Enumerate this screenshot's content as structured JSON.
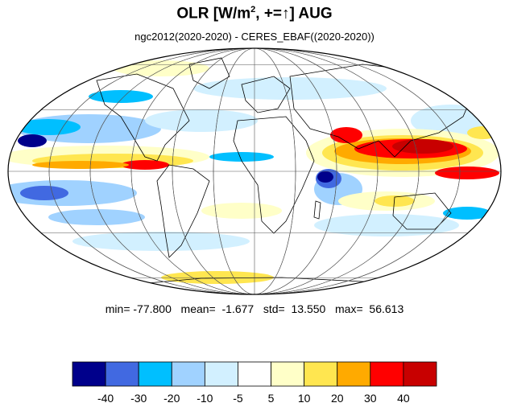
{
  "title": {
    "main_prefix": "OLR [W/m",
    "superscript": "2",
    "main_suffix": ", +=",
    "arrow": "↑",
    "main_tail": "] AUG"
  },
  "subtitle": "ngc2012(2020-2020) - CERES_EBAF((2020-2020))",
  "stats": {
    "text": "min= -77.800   mean=  -1.677   std=  13.550   max=  56.613"
  },
  "colorbar": {
    "colors": [
      "#00008b",
      "#4169e1",
      "#00bfff",
      "#a0d2ff",
      "#d2f0ff",
      "#ffffff",
      "#ffffc8",
      "#ffe650",
      "#ffaa00",
      "#ff0000",
      "#c80000"
    ],
    "labels": [
      "-40",
      "-30",
      "-20",
      "-10",
      "-5",
      "5",
      "10",
      "20",
      "30",
      "40"
    ]
  },
  "map": {
    "projection": "mollweide",
    "center_longitude": 0,
    "gridline_step_degrees": 30,
    "land_outline_color": "#000000"
  }
}
